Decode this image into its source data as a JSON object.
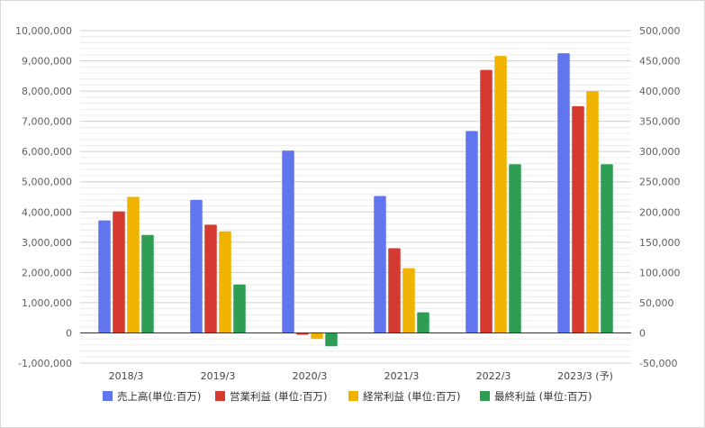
{
  "chart_data": {
    "type": "bar",
    "categories": [
      "2018/3",
      "2019/3",
      "2020/3",
      "2021/3",
      "2022/3",
      "2023/3 (予)"
    ],
    "series": [
      {
        "name": "売上高(単位:百万)",
        "axis": "left",
        "color": "#6176ee",
        "values": [
          3720000,
          4400000,
          6030000,
          4530000,
          6680000,
          9250000
        ]
      },
      {
        "name": "営業利益 (単位:百万)",
        "axis": "right",
        "color": "#d43a2f",
        "values": [
          201000,
          179000,
          -3000,
          140000,
          435000,
          375000
        ]
      },
      {
        "name": "経常利益 (単位:百万)",
        "axis": "right",
        "color": "#f0b400",
        "values": [
          225000,
          168000,
          -10000,
          107000,
          458000,
          400000
        ]
      },
      {
        "name": "最終利益 (単位:百万)",
        "axis": "right",
        "color": "#2e9e55",
        "values": [
          162000,
          80000,
          -22000,
          34000,
          279000,
          279000
        ]
      }
    ],
    "left_axis": {
      "ylim": [
        -1000000,
        10000000
      ],
      "ticks": [
        -1000000,
        0,
        1000000,
        2000000,
        3000000,
        4000000,
        5000000,
        6000000,
        7000000,
        8000000,
        9000000,
        10000000
      ],
      "tick_labels": [
        "-1,000,000",
        "0",
        "1,000,000",
        "2,000,000",
        "3,000,000",
        "4,000,000",
        "5,000,000",
        "6,000,000",
        "7,000,000",
        "8,000,000",
        "9,000,000",
        "10,000,000"
      ]
    },
    "right_axis": {
      "ylim": [
        -50000,
        500000
      ],
      "ticks": [
        -50000,
        0,
        50000,
        100000,
        150000,
        200000,
        250000,
        300000,
        350000,
        400000,
        450000,
        500000
      ],
      "tick_labels": [
        "-50,000",
        "0",
        "50,000",
        "100,000",
        "150,000",
        "200,000",
        "250,000",
        "300,000",
        "350,000",
        "400,000",
        "450,000",
        "500,000"
      ]
    },
    "grid": true,
    "legend_position": "bottom"
  }
}
